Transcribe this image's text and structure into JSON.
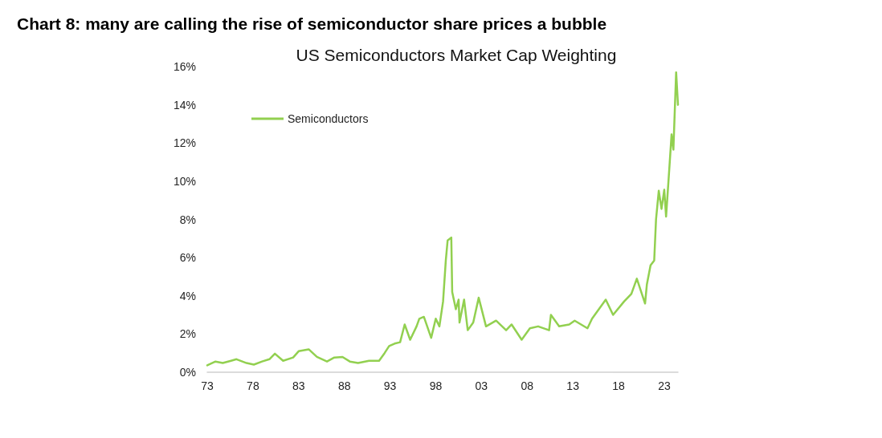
{
  "chart_data": {
    "type": "line",
    "title": "Chart 8: many are calling the rise of semiconductor share prices a bubble",
    "subtitle": "US Semiconductors Market Cap Weighting",
    "x": [
      1973,
      1973.9,
      1974.7,
      1975.6,
      1976.2,
      1977.3,
      1978.1,
      1979,
      1979.8,
      1980.4,
      1981.3,
      1982.4,
      1983,
      1984.1,
      1985,
      1986.1,
      1986.9,
      1987.8,
      1988.6,
      1989.5,
      1990.7,
      1991.8,
      1992.4,
      1992.9,
      1993.5,
      1994.1,
      1994.6,
      1995.2,
      1995.9,
      1996.2,
      1996.7,
      1997.5,
      1998,
      1998.4,
      1998.8,
      1999.1,
      1999.3,
      1999.7,
      1999.8,
      2000.2,
      2000.5,
      2000.6,
      2001.1,
      2001.5,
      2002.1,
      2002.7,
      2003.5,
      2004.6,
      2005.7,
      2006.3,
      2007.4,
      2008.3,
      2009.2,
      2010.4,
      2010.6,
      2011.5,
      2012.6,
      2013.2,
      2014.6,
      2015.1,
      2016,
      2016.6,
      2017.4,
      2018.6,
      2019.4,
      2020,
      2020.9,
      2021.1,
      2021.5,
      2021.9,
      2022.1,
      2022.4,
      2022.7,
      2023,
      2023.2,
      2023.6,
      2023.8,
      2024,
      2024.3,
      2024.5
    ],
    "series": [
      {
        "name": "Semiconductors",
        "color": "#92d050",
        "values": [
          0.36,
          0.56,
          0.48,
          0.6,
          0.68,
          0.48,
          0.4,
          0.56,
          0.68,
          0.97,
          0.6,
          0.77,
          1.1,
          1.2,
          0.8,
          0.56,
          0.77,
          0.8,
          0.56,
          0.48,
          0.6,
          0.6,
          1.0,
          1.37,
          1.5,
          1.57,
          2.5,
          1.7,
          2.4,
          2.8,
          2.9,
          1.8,
          2.8,
          2.4,
          3.7,
          5.85,
          6.9,
          7.05,
          4.2,
          3.3,
          3.8,
          2.6,
          3.8,
          2.2,
          2.6,
          3.9,
          2.4,
          2.7,
          2.2,
          2.5,
          1.7,
          2.3,
          2.4,
          2.2,
          3.0,
          2.4,
          2.5,
          2.7,
          2.3,
          2.8,
          3.4,
          3.8,
          3.0,
          3.7,
          4.1,
          4.9,
          3.6,
          4.6,
          5.6,
          5.85,
          8.0,
          9.5,
          8.55,
          9.55,
          8.15,
          11.0,
          12.45,
          11.65,
          15.7,
          14.0
        ]
      }
    ],
    "xlim": [
      1973,
      2024.5
    ],
    "xticks": [
      {
        "value": 1973,
        "label": "73"
      },
      {
        "value": 1978,
        "label": "78"
      },
      {
        "value": 1983,
        "label": "83"
      },
      {
        "value": 1988,
        "label": "88"
      },
      {
        "value": 1993,
        "label": "93"
      },
      {
        "value": 1998,
        "label": "98"
      },
      {
        "value": 2003,
        "label": "03"
      },
      {
        "value": 2008,
        "label": "08"
      },
      {
        "value": 2013,
        "label": "13"
      },
      {
        "value": 2018,
        "label": "18"
      },
      {
        "value": 2023,
        "label": "23"
      }
    ],
    "ylim": [
      0,
      16
    ],
    "yticks": [
      {
        "value": 0,
        "label": "0%"
      },
      {
        "value": 2,
        "label": "2%"
      },
      {
        "value": 4,
        "label": "4%"
      },
      {
        "value": 6,
        "label": "6%"
      },
      {
        "value": 8,
        "label": "8%"
      },
      {
        "value": 10,
        "label": "10%"
      },
      {
        "value": 12,
        "label": "12%"
      },
      {
        "value": 14,
        "label": "14%"
      },
      {
        "value": 16,
        "label": "16%"
      }
    ],
    "legend": "top left",
    "grid": false,
    "marker": "none",
    "line_style": "solid"
  }
}
